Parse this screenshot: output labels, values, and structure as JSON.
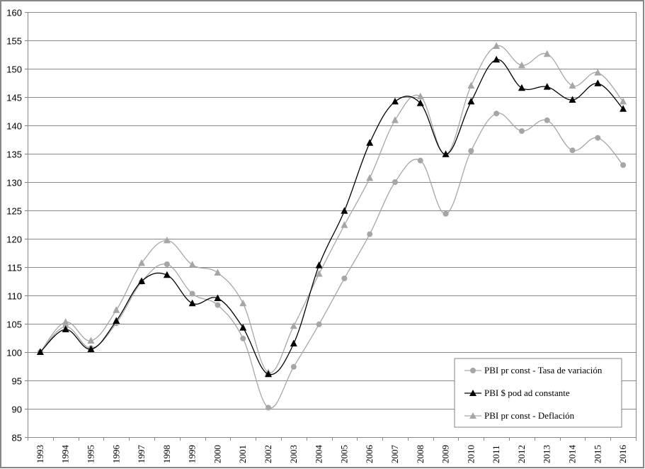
{
  "chart_data": {
    "type": "line",
    "title": "",
    "xlabel": "",
    "ylabel": "",
    "ylim": [
      85,
      160
    ],
    "yticks": [
      85,
      90,
      95,
      100,
      105,
      110,
      115,
      120,
      125,
      130,
      135,
      140,
      145,
      150,
      155,
      160
    ],
    "grid": true,
    "smooth": true,
    "legend_position": "lower-right-inside",
    "categories": [
      "1993",
      "1994",
      "1995",
      "1996",
      "1997",
      "1998",
      "1999",
      "2000",
      "2001",
      "2002",
      "2003",
      "2004",
      "2005",
      "2006",
      "2007",
      "2008",
      "2009",
      "2010",
      "2011",
      "2012",
      "2013",
      "2014",
      "2015",
      "2016"
    ],
    "series": [
      {
        "name": "PBI pr const - Tasa de variación",
        "color": "#a6a6a6",
        "marker": "circle",
        "values": [
          100,
          104.5,
          100.7,
          105.1,
          112.4,
          115.5,
          110.3,
          108.3,
          102.4,
          90.2,
          97.4,
          104.9,
          113.0,
          120.8,
          130.0,
          133.8,
          124.4,
          135.5,
          142.1,
          139.0,
          140.9,
          135.6,
          137.8,
          133.0
        ]
      },
      {
        "name": "PBI $ pod ad constante",
        "color": "#000000",
        "marker": "triangle",
        "values": [
          100,
          104.0,
          100.5,
          105.5,
          112.5,
          113.6,
          108.6,
          109.5,
          104.3,
          96.1,
          101.5,
          115.3,
          124.9,
          136.9,
          144.2,
          143.9,
          134.9,
          144.2,
          151.6,
          146.6,
          146.8,
          144.5,
          147.4,
          142.9
        ]
      },
      {
        "name": "PBI pr const - Deflación",
        "color": "#a6a6a6",
        "marker": "triangle",
        "values": [
          100,
          105.3,
          102.0,
          107.4,
          115.7,
          119.7,
          115.4,
          114.0,
          108.6,
          96.4,
          104.6,
          113.8,
          122.4,
          130.7,
          140.9,
          145.1,
          134.9,
          147.0,
          154.0,
          150.6,
          152.6,
          147.0,
          149.3,
          144.2
        ]
      }
    ]
  },
  "legend": {
    "items": [
      {
        "label": "PBI pr const - Tasa de variación",
        "marker": "circle",
        "color": "#a6a6a6"
      },
      {
        "label": "PBI $ pod ad constante",
        "marker": "triangle",
        "color": "#000000"
      },
      {
        "label": "PBI pr const - Deflación",
        "marker": "triangle",
        "color": "#a6a6a6"
      }
    ]
  },
  "colors": {
    "grid": "#868686",
    "axis": "#868686",
    "border": "#868686"
  }
}
